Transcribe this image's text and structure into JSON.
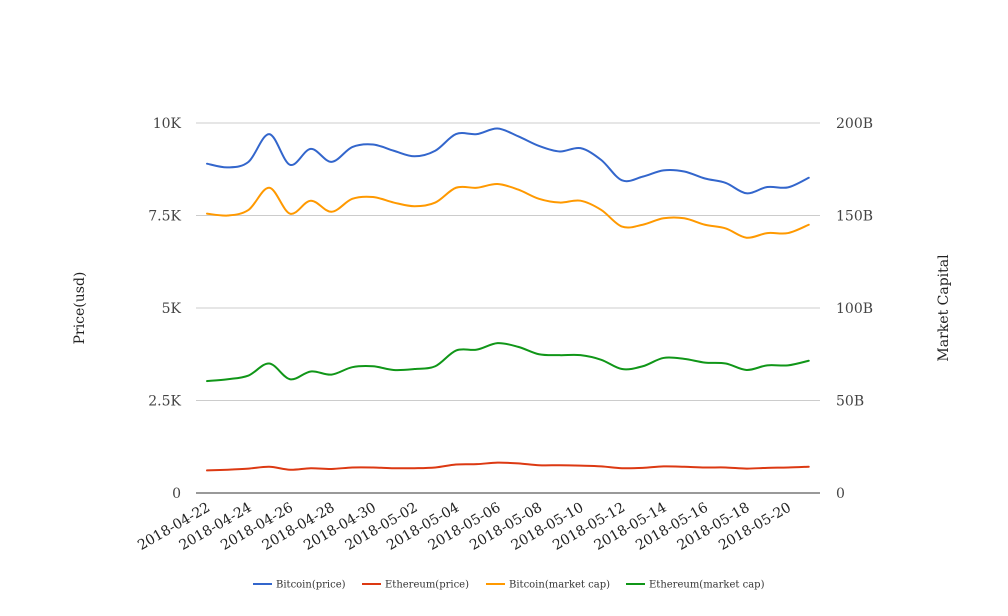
{
  "chart_data": {
    "type": "line",
    "title": "",
    "xlabel": "",
    "ylabel_left": "Price(usd)",
    "ylabel_right": "Market Capital",
    "x": [
      "2018-04-22",
      "2018-04-23",
      "2018-04-24",
      "2018-04-25",
      "2018-04-26",
      "2018-04-27",
      "2018-04-28",
      "2018-04-29",
      "2018-04-30",
      "2018-05-01",
      "2018-05-02",
      "2018-05-03",
      "2018-05-04",
      "2018-05-05",
      "2018-05-06",
      "2018-05-07",
      "2018-05-08",
      "2018-05-09",
      "2018-05-10",
      "2018-05-11",
      "2018-05-12",
      "2018-05-13",
      "2018-05-14",
      "2018-05-15",
      "2018-05-16",
      "2018-05-17",
      "2018-05-18",
      "2018-05-19",
      "2018-05-20",
      "2018-05-21"
    ],
    "x_tick_labels": [
      "2018-04-22",
      "2018-04-24",
      "2018-04-26",
      "2018-04-28",
      "2018-04-30",
      "2018-05-02",
      "2018-05-04",
      "2018-05-06",
      "2018-05-08",
      "2018-05-10",
      "2018-05-12",
      "2018-05-14",
      "2018-05-16",
      "2018-05-18",
      "2018-05-20"
    ],
    "y_left": {
      "ylim": [
        0,
        10000
      ],
      "ticks": [
        0,
        2500,
        5000,
        7500,
        10000
      ],
      "tick_labels": [
        "0",
        "2.5K",
        "5K",
        "7.5K",
        "10K"
      ]
    },
    "y_right": {
      "ylim": [
        0,
        200000000000
      ],
      "ticks": [
        0,
        50000000000,
        100000000000,
        150000000000,
        200000000000
      ],
      "tick_labels": [
        "0",
        "50B",
        "100B",
        "150B",
        "200B"
      ]
    },
    "grid": true,
    "legend_position": "bottom-center",
    "series": [
      {
        "name": "Bitcoin(price)",
        "axis": "left",
        "color": "#3366cc",
        "values": [
          8900,
          8800,
          8950,
          9700,
          8870,
          9300,
          8950,
          9350,
          9420,
          9250,
          9100,
          9250,
          9700,
          9700,
          9850,
          9640,
          9380,
          9230,
          9320,
          9000,
          8450,
          8550,
          8720,
          8690,
          8500,
          8380,
          8100,
          8270,
          8260,
          8520
        ]
      },
      {
        "name": "Ethereum(price)",
        "axis": "left",
        "color": "#dc3912",
        "values": [
          610,
          630,
          660,
          710,
          630,
          670,
          650,
          690,
          690,
          670,
          670,
          690,
          770,
          780,
          820,
          800,
          750,
          750,
          740,
          720,
          670,
          680,
          720,
          710,
          690,
          690,
          660,
          680,
          690,
          710
        ]
      },
      {
        "name": "Bitcoin(market cap)",
        "axis": "right",
        "color": "#ff9900",
        "values": [
          151000000000,
          150000000000,
          153000000000,
          165000000000,
          151000000000,
          158000000000,
          152000000000,
          159000000000,
          160000000000,
          157000000000,
          155000000000,
          157000000000,
          165000000000,
          165000000000,
          167000000000,
          164000000000,
          159000000000,
          157000000000,
          158000000000,
          153000000000,
          144000000000,
          145000000000,
          148500000000,
          148500000000,
          145000000000,
          143000000000,
          138000000000,
          140500000000,
          140500000000,
          145000000000
        ]
      },
      {
        "name": "Ethereum(market cap)",
        "axis": "right",
        "color": "#109618",
        "values": [
          60500000000,
          61500000000,
          63500000000,
          70000000000,
          61500000000,
          65700000000,
          64000000000,
          68000000000,
          68500000000,
          66500000000,
          67000000000,
          68500000000,
          77000000000,
          77500000000,
          81000000000,
          79000000000,
          75000000000,
          74500000000,
          74500000000,
          72000000000,
          67000000000,
          68500000000,
          73000000000,
          72500000000,
          70500000000,
          70000000000,
          66500000000,
          69000000000,
          69000000000,
          71500000000
        ]
      }
    ]
  }
}
